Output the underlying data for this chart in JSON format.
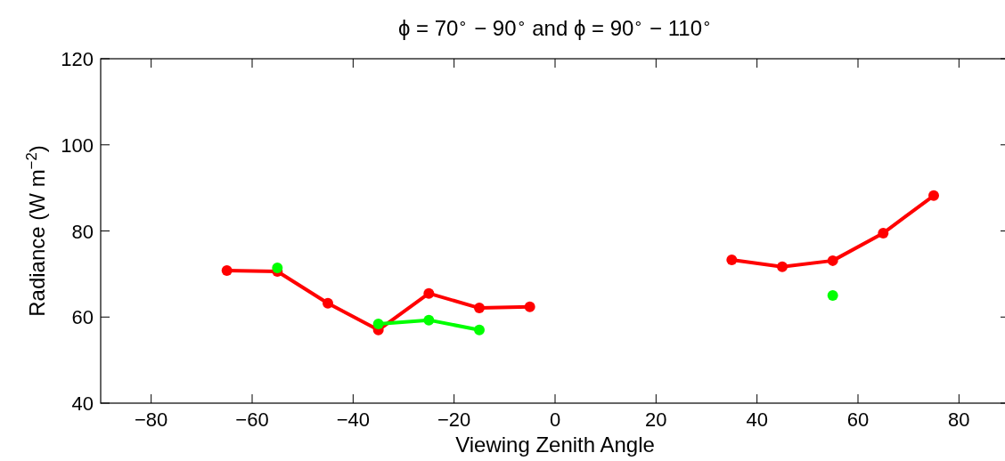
{
  "chart_data": {
    "type": "line",
    "title": "ϕ = 70$^{∘}$ − 90$^{∘}$ and ϕ = 90$^{∘}$ − 110$^{∘}$",
    "xlabel": "Viewing Zenith Angle",
    "ylabel": "Radiance (W m$^{−2}$)",
    "x": [
      -65,
      -55,
      -45,
      -35,
      -25,
      -15,
      -5,
      5,
      15,
      25,
      35,
      45,
      55,
      65,
      75
    ],
    "series": [
      {
        "color": "#ff0000",
        "values": [
          70.8,
          70.6,
          63.2,
          57.0,
          65.5,
          62.1,
          62.4,
          null,
          null,
          null,
          73.3,
          71.7,
          73.1,
          79.5,
          88.2
        ]
      },
      {
        "color": "#00ff00",
        "values": [
          null,
          71.4,
          null,
          58.4,
          59.3,
          57.0,
          null,
          null,
          null,
          null,
          null,
          null,
          65.0,
          null,
          null
        ]
      }
    ],
    "xlim": [
      -90,
      90
    ],
    "xticks": [
      -80,
      -60,
      -40,
      -20,
      0,
      20,
      40,
      60,
      80
    ],
    "ylim": [
      40,
      120
    ],
    "yticks": [
      40,
      60,
      80,
      100,
      120
    ],
    "marker": "circle",
    "line_style": "solid"
  }
}
